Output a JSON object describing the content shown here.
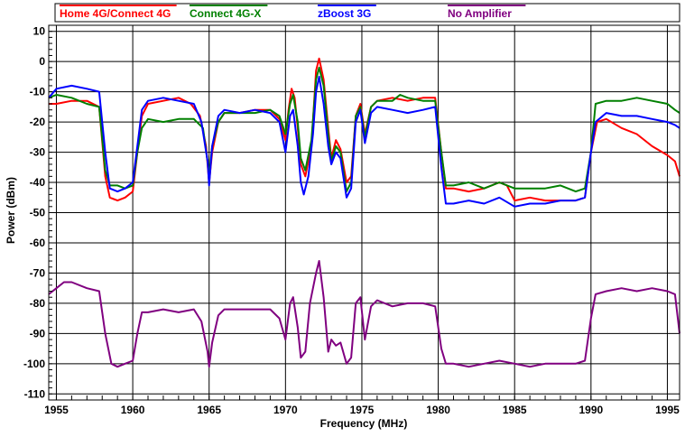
{
  "chart_data": {
    "type": "line",
    "xlabel": "Frequency (MHz)",
    "ylabel": "Power (dBm)",
    "xlim": [
      1954.5,
      1995.8
    ],
    "ylim": [
      -112,
      12
    ],
    "x_ticks": [
      1955,
      1960,
      1965,
      1970,
      1975,
      1980,
      1985,
      1990,
      1995
    ],
    "x_tick_labels": [
      "1955",
      "1960",
      "1965",
      "1970",
      "1975",
      "1980",
      "1985",
      "1990",
      "1995"
    ],
    "y_ticks": [
      10,
      0,
      -10,
      -20,
      -30,
      -40,
      -50,
      -60,
      -70,
      -80,
      -90,
      -100,
      -110
    ],
    "y_tick_labels": [
      "10",
      "0",
      "-10",
      "-20",
      "-30",
      "-40",
      "-50",
      "-60",
      "-70",
      "-80",
      "-90",
      "-100",
      "-110"
    ],
    "grid": true,
    "legend_position": "top",
    "series": [
      {
        "name": "Home 4G/Connect 4G",
        "color": "#ff0000",
        "points": [
          [
            1954.5,
            -14
          ],
          [
            1955,
            -14
          ],
          [
            1956,
            -13
          ],
          [
            1957,
            -13
          ],
          [
            1957.8,
            -15
          ],
          [
            1958.2,
            -38
          ],
          [
            1958.5,
            -45
          ],
          [
            1959,
            -46
          ],
          [
            1959.5,
            -45
          ],
          [
            1960,
            -43
          ],
          [
            1960.3,
            -30
          ],
          [
            1960.6,
            -18
          ],
          [
            1961,
            -14
          ],
          [
            1962,
            -13
          ],
          [
            1963,
            -12
          ],
          [
            1963.8,
            -14
          ],
          [
            1964.4,
            -18
          ],
          [
            1964.8,
            -28
          ],
          [
            1965,
            -40
          ],
          [
            1965.2,
            -30
          ],
          [
            1965.6,
            -20
          ],
          [
            1966,
            -17
          ],
          [
            1967,
            -17
          ],
          [
            1968,
            -16
          ],
          [
            1969,
            -16
          ],
          [
            1969.6,
            -19
          ],
          [
            1970,
            -26
          ],
          [
            1970.2,
            -16
          ],
          [
            1970.4,
            -9
          ],
          [
            1970.6,
            -12
          ],
          [
            1970.8,
            -22
          ],
          [
            1971,
            -34
          ],
          [
            1971.3,
            -38
          ],
          [
            1971.7,
            -28
          ],
          [
            1972,
            -3
          ],
          [
            1972.2,
            1
          ],
          [
            1972.5,
            -6
          ],
          [
            1972.8,
            -22
          ],
          [
            1973,
            -32
          ],
          [
            1973.3,
            -26
          ],
          [
            1973.6,
            -29
          ],
          [
            1974,
            -40
          ],
          [
            1974.3,
            -38
          ],
          [
            1974.6,
            -18
          ],
          [
            1974.9,
            -14
          ],
          [
            1975.2,
            -24
          ],
          [
            1975.6,
            -15
          ],
          [
            1976,
            -13
          ],
          [
            1977,
            -12
          ],
          [
            1978,
            -13
          ],
          [
            1979,
            -12
          ],
          [
            1979.8,
            -12
          ],
          [
            1980.2,
            -30
          ],
          [
            1980.5,
            -42
          ],
          [
            1981,
            -42
          ],
          [
            1982,
            -43
          ],
          [
            1983,
            -42
          ],
          [
            1984,
            -40
          ],
          [
            1984.5,
            -41
          ],
          [
            1985,
            -46
          ],
          [
            1986,
            -45
          ],
          [
            1987,
            -46
          ],
          [
            1988,
            -46
          ],
          [
            1989,
            -46
          ],
          [
            1989.6,
            -45
          ],
          [
            1990,
            -30
          ],
          [
            1990.4,
            -20
          ],
          [
            1991,
            -19
          ],
          [
            1992,
            -22
          ],
          [
            1993,
            -24
          ],
          [
            1994,
            -28
          ],
          [
            1995,
            -31
          ],
          [
            1995.5,
            -33
          ],
          [
            1995.8,
            -38
          ]
        ]
      },
      {
        "name": "Connect 4G-X",
        "color": "#008000",
        "points": [
          [
            1954.5,
            -12
          ],
          [
            1955,
            -11
          ],
          [
            1956,
            -12
          ],
          [
            1957,
            -14
          ],
          [
            1957.8,
            -15
          ],
          [
            1958.2,
            -36
          ],
          [
            1958.5,
            -41
          ],
          [
            1959,
            -41
          ],
          [
            1959.5,
            -42
          ],
          [
            1960,
            -41
          ],
          [
            1960.3,
            -30
          ],
          [
            1960.6,
            -22
          ],
          [
            1961,
            -19
          ],
          [
            1962,
            -20
          ],
          [
            1963,
            -19
          ],
          [
            1964,
            -19
          ],
          [
            1964.6,
            -22
          ],
          [
            1964.9,
            -33
          ],
          [
            1965,
            -38
          ],
          [
            1965.2,
            -28
          ],
          [
            1965.6,
            -20
          ],
          [
            1966,
            -17
          ],
          [
            1967,
            -17
          ],
          [
            1968,
            -17
          ],
          [
            1969,
            -16
          ],
          [
            1969.6,
            -18
          ],
          [
            1970,
            -24
          ],
          [
            1970.3,
            -14
          ],
          [
            1970.5,
            -11
          ],
          [
            1970.8,
            -20
          ],
          [
            1971,
            -32
          ],
          [
            1971.3,
            -36
          ],
          [
            1971.7,
            -26
          ],
          [
            1972,
            -6
          ],
          [
            1972.2,
            -2
          ],
          [
            1972.5,
            -8
          ],
          [
            1972.8,
            -24
          ],
          [
            1973,
            -33
          ],
          [
            1973.3,
            -28
          ],
          [
            1973.6,
            -30
          ],
          [
            1974,
            -43
          ],
          [
            1974.3,
            -40
          ],
          [
            1974.6,
            -18
          ],
          [
            1974.9,
            -15
          ],
          [
            1975.2,
            -25
          ],
          [
            1975.6,
            -15
          ],
          [
            1976,
            -13
          ],
          [
            1977,
            -13
          ],
          [
            1977.5,
            -11
          ],
          [
            1978,
            -12
          ],
          [
            1979,
            -13
          ],
          [
            1979.8,
            -13
          ],
          [
            1980.2,
            -30
          ],
          [
            1980.5,
            -41
          ],
          [
            1981,
            -41
          ],
          [
            1982,
            -40
          ],
          [
            1983,
            -42
          ],
          [
            1984,
            -40
          ],
          [
            1985,
            -42
          ],
          [
            1986,
            -42
          ],
          [
            1987,
            -42
          ],
          [
            1988,
            -41
          ],
          [
            1989,
            -43
          ],
          [
            1989.6,
            -42
          ],
          [
            1990,
            -30
          ],
          [
            1990.3,
            -14
          ],
          [
            1991,
            -13
          ],
          [
            1992,
            -13
          ],
          [
            1993,
            -12
          ],
          [
            1994,
            -13
          ],
          [
            1995,
            -14
          ],
          [
            1995.5,
            -16
          ],
          [
            1995.8,
            -17
          ]
        ]
      },
      {
        "name": "zBoost 3G",
        "color": "#0000ff",
        "points": [
          [
            1954.5,
            -12
          ],
          [
            1955,
            -9
          ],
          [
            1956,
            -8
          ],
          [
            1957,
            -9
          ],
          [
            1957.8,
            -10
          ],
          [
            1958.2,
            -30
          ],
          [
            1958.5,
            -42
          ],
          [
            1959,
            -43
          ],
          [
            1959.5,
            -42
          ],
          [
            1960,
            -40
          ],
          [
            1960.3,
            -28
          ],
          [
            1960.6,
            -16
          ],
          [
            1961,
            -13
          ],
          [
            1962,
            -12
          ],
          [
            1963,
            -13
          ],
          [
            1964,
            -14
          ],
          [
            1964.5,
            -20
          ],
          [
            1964.9,
            -33
          ],
          [
            1965,
            -41
          ],
          [
            1965.2,
            -28
          ],
          [
            1965.6,
            -18
          ],
          [
            1966,
            -16
          ],
          [
            1967,
            -17
          ],
          [
            1968,
            -16
          ],
          [
            1969,
            -17
          ],
          [
            1969.6,
            -20
          ],
          [
            1970,
            -30
          ],
          [
            1970.3,
            -18
          ],
          [
            1970.5,
            -16
          ],
          [
            1970.8,
            -28
          ],
          [
            1971,
            -40
          ],
          [
            1971.2,
            -44
          ],
          [
            1971.5,
            -38
          ],
          [
            1971.8,
            -24
          ],
          [
            1972,
            -10
          ],
          [
            1972.2,
            -5
          ],
          [
            1972.5,
            -14
          ],
          [
            1972.8,
            -28
          ],
          [
            1973,
            -34
          ],
          [
            1973.3,
            -30
          ],
          [
            1973.6,
            -32
          ],
          [
            1974,
            -45
          ],
          [
            1974.3,
            -42
          ],
          [
            1974.6,
            -20
          ],
          [
            1974.9,
            -16
          ],
          [
            1975.2,
            -27
          ],
          [
            1975.6,
            -17
          ],
          [
            1976,
            -15
          ],
          [
            1977,
            -16
          ],
          [
            1978,
            -17
          ],
          [
            1979,
            -16
          ],
          [
            1979.8,
            -15
          ],
          [
            1980.2,
            -35
          ],
          [
            1980.5,
            -47
          ],
          [
            1981,
            -47
          ],
          [
            1982,
            -46
          ],
          [
            1983,
            -47
          ],
          [
            1984,
            -45
          ],
          [
            1985,
            -48
          ],
          [
            1986,
            -47
          ],
          [
            1987,
            -47
          ],
          [
            1988,
            -46
          ],
          [
            1989,
            -46
          ],
          [
            1989.6,
            -45
          ],
          [
            1990,
            -30
          ],
          [
            1990.3,
            -20
          ],
          [
            1991,
            -17
          ],
          [
            1992,
            -18
          ],
          [
            1993,
            -18
          ],
          [
            1994,
            -19
          ],
          [
            1995,
            -20
          ],
          [
            1995.5,
            -21
          ],
          [
            1995.8,
            -22
          ]
        ]
      },
      {
        "name": "No Amplifier",
        "color": "#800080",
        "points": [
          [
            1954.5,
            -77
          ],
          [
            1955,
            -75
          ],
          [
            1955.5,
            -73
          ],
          [
            1956,
            -73
          ],
          [
            1957,
            -75
          ],
          [
            1957.8,
            -76
          ],
          [
            1958.2,
            -90
          ],
          [
            1958.6,
            -100
          ],
          [
            1959,
            -101
          ],
          [
            1959.5,
            -100
          ],
          [
            1960,
            -99
          ],
          [
            1960.3,
            -90
          ],
          [
            1960.6,
            -83
          ],
          [
            1961,
            -83
          ],
          [
            1962,
            -82
          ],
          [
            1963,
            -83
          ],
          [
            1964,
            -82
          ],
          [
            1964.5,
            -86
          ],
          [
            1964.9,
            -96
          ],
          [
            1965,
            -101
          ],
          [
            1965.2,
            -93
          ],
          [
            1965.6,
            -84
          ],
          [
            1966,
            -82
          ],
          [
            1967,
            -82
          ],
          [
            1968,
            -82
          ],
          [
            1969,
            -82
          ],
          [
            1969.6,
            -85
          ],
          [
            1970,
            -92
          ],
          [
            1970.3,
            -80
          ],
          [
            1970.5,
            -78
          ],
          [
            1970.8,
            -88
          ],
          [
            1971,
            -98
          ],
          [
            1971.3,
            -96
          ],
          [
            1971.6,
            -80
          ],
          [
            1972,
            -70
          ],
          [
            1972.2,
            -66
          ],
          [
            1972.5,
            -78
          ],
          [
            1972.8,
            -96
          ],
          [
            1973,
            -92
          ],
          [
            1973.3,
            -94
          ],
          [
            1973.6,
            -93
          ],
          [
            1974,
            -100
          ],
          [
            1974.3,
            -98
          ],
          [
            1974.6,
            -80
          ],
          [
            1974.9,
            -78
          ],
          [
            1975.2,
            -92
          ],
          [
            1975.6,
            -81
          ],
          [
            1976,
            -79
          ],
          [
            1977,
            -81
          ],
          [
            1978,
            -80
          ],
          [
            1979,
            -80
          ],
          [
            1979.8,
            -81
          ],
          [
            1980.2,
            -95
          ],
          [
            1980.5,
            -100
          ],
          [
            1981,
            -100
          ],
          [
            1982,
            -101
          ],
          [
            1983,
            -100
          ],
          [
            1984,
            -99
          ],
          [
            1985,
            -100
          ],
          [
            1986,
            -101
          ],
          [
            1987,
            -100
          ],
          [
            1988,
            -100
          ],
          [
            1989,
            -100
          ],
          [
            1989.6,
            -99
          ],
          [
            1990,
            -85
          ],
          [
            1990.3,
            -77
          ],
          [
            1991,
            -76
          ],
          [
            1992,
            -75
          ],
          [
            1993,
            -76
          ],
          [
            1994,
            -75
          ],
          [
            1995,
            -76
          ],
          [
            1995.5,
            -77
          ],
          [
            1995.8,
            -90
          ]
        ]
      }
    ]
  }
}
